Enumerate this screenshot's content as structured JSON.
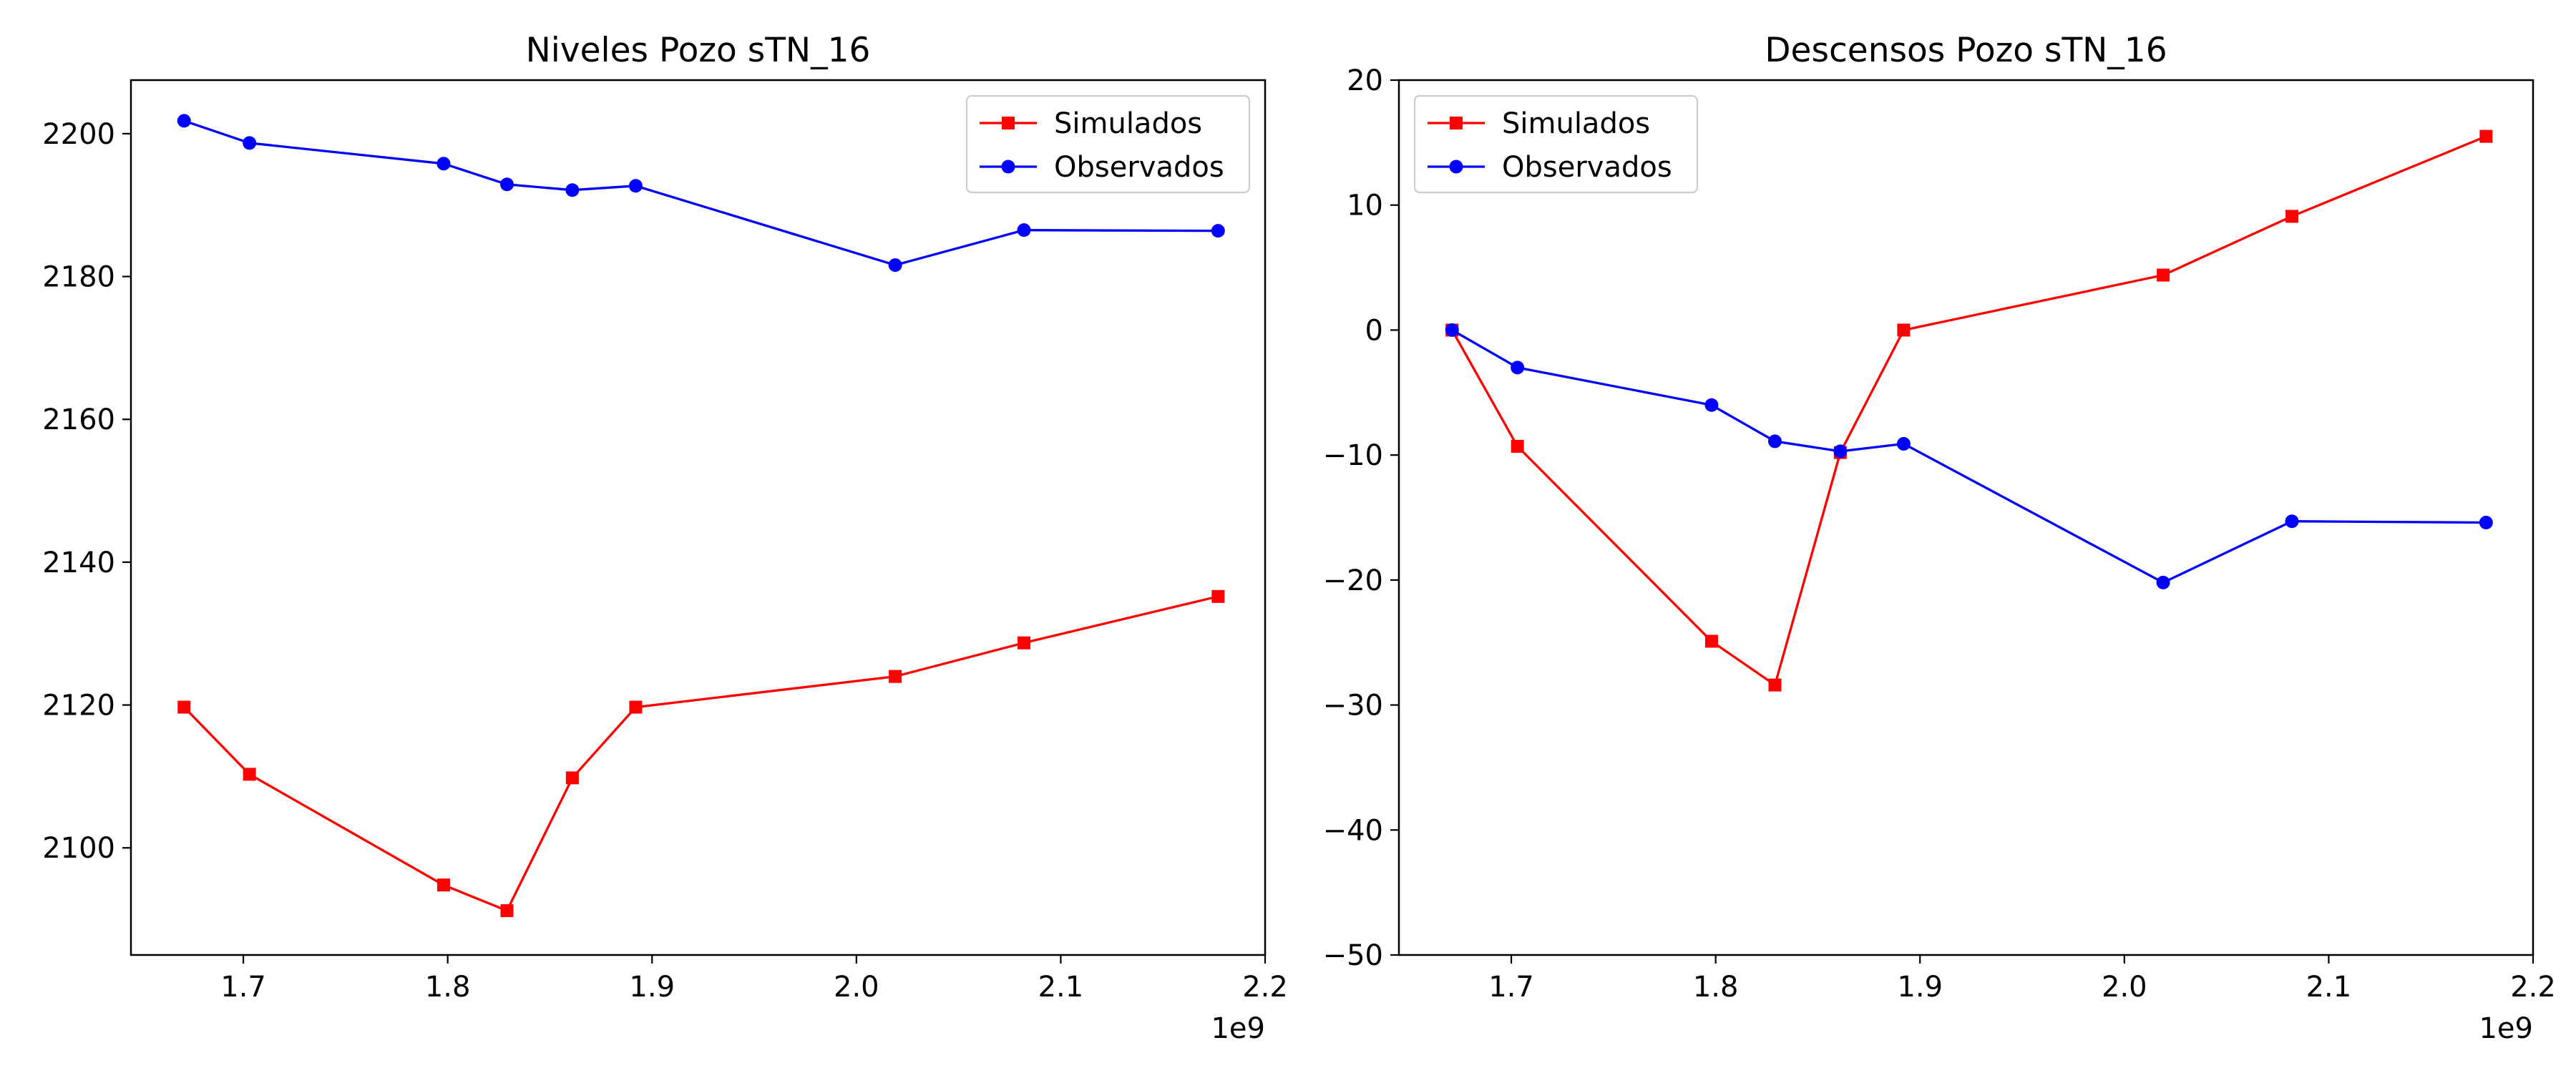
{
  "chart_data": [
    {
      "type": "line",
      "title": "Niveles Pozo sTN_16",
      "xlabel": "",
      "ylabel": "",
      "x_offset_text": "1e9",
      "xlim": [
        1.645,
        2.2
      ],
      "ylim": [
        2085,
        2207.5
      ],
      "xticks": [
        1.7,
        1.8,
        1.9,
        2.0,
        2.1,
        2.2
      ],
      "xtick_labels": [
        "1.7",
        "1.8",
        "1.9",
        "2.0",
        "2.1",
        "2.2"
      ],
      "yticks": [
        2100,
        2120,
        2140,
        2160,
        2180,
        2200
      ],
      "ytick_labels": [
        "2100",
        "2120",
        "2140",
        "2160",
        "2180",
        "2200"
      ],
      "grid": false,
      "legend_position": "top-right",
      "x": [
        1.671,
        1.703,
        1.798,
        1.829,
        1.861,
        1.892,
        2.019,
        2.082,
        2.177
      ],
      "series": [
        {
          "name": "Simulados",
          "color": "#ff0000",
          "marker": "square",
          "values": [
            2119.7,
            2110.3,
            2094.8,
            2091.2,
            2109.8,
            2119.7,
            2124.0,
            2128.7,
            2135.2
          ]
        },
        {
          "name": "Observados",
          "color": "#0000ff",
          "marker": "circle",
          "values": [
            2201.8,
            2198.7,
            2195.8,
            2192.9,
            2192.1,
            2192.7,
            2181.6,
            2186.5,
            2186.4
          ]
        }
      ]
    },
    {
      "type": "line",
      "title": "Descensos Pozo sTN_16",
      "xlabel": "",
      "ylabel": "",
      "x_offset_text": "1e9",
      "xlim": [
        1.645,
        2.2
      ],
      "ylim": [
        -50,
        20
      ],
      "xticks": [
        1.7,
        1.8,
        1.9,
        2.0,
        2.1,
        2.2
      ],
      "xtick_labels": [
        "1.7",
        "1.8",
        "1.9",
        "2.0",
        "2.1",
        "2.2"
      ],
      "yticks": [
        -50,
        -40,
        -30,
        -20,
        -10,
        0,
        10,
        20
      ],
      "ytick_labels": [
        "−50",
        "−40",
        "−30",
        "−20",
        "−10",
        "0",
        "10",
        "20"
      ],
      "grid": false,
      "legend_position": "top-left",
      "x": [
        1.671,
        1.703,
        1.798,
        1.829,
        1.861,
        1.892,
        2.019,
        2.082,
        2.177
      ],
      "series": [
        {
          "name": "Simulados",
          "color": "#ff0000",
          "marker": "square",
          "values": [
            0.0,
            -9.3,
            -24.9,
            -28.4,
            -9.8,
            0.0,
            4.4,
            9.1,
            15.5
          ]
        },
        {
          "name": "Observados",
          "color": "#0000ff",
          "marker": "circle",
          "values": [
            0.0,
            -3.0,
            -6.0,
            -8.9,
            -9.7,
            -9.1,
            -20.2,
            -15.3,
            -15.4
          ]
        }
      ]
    }
  ]
}
